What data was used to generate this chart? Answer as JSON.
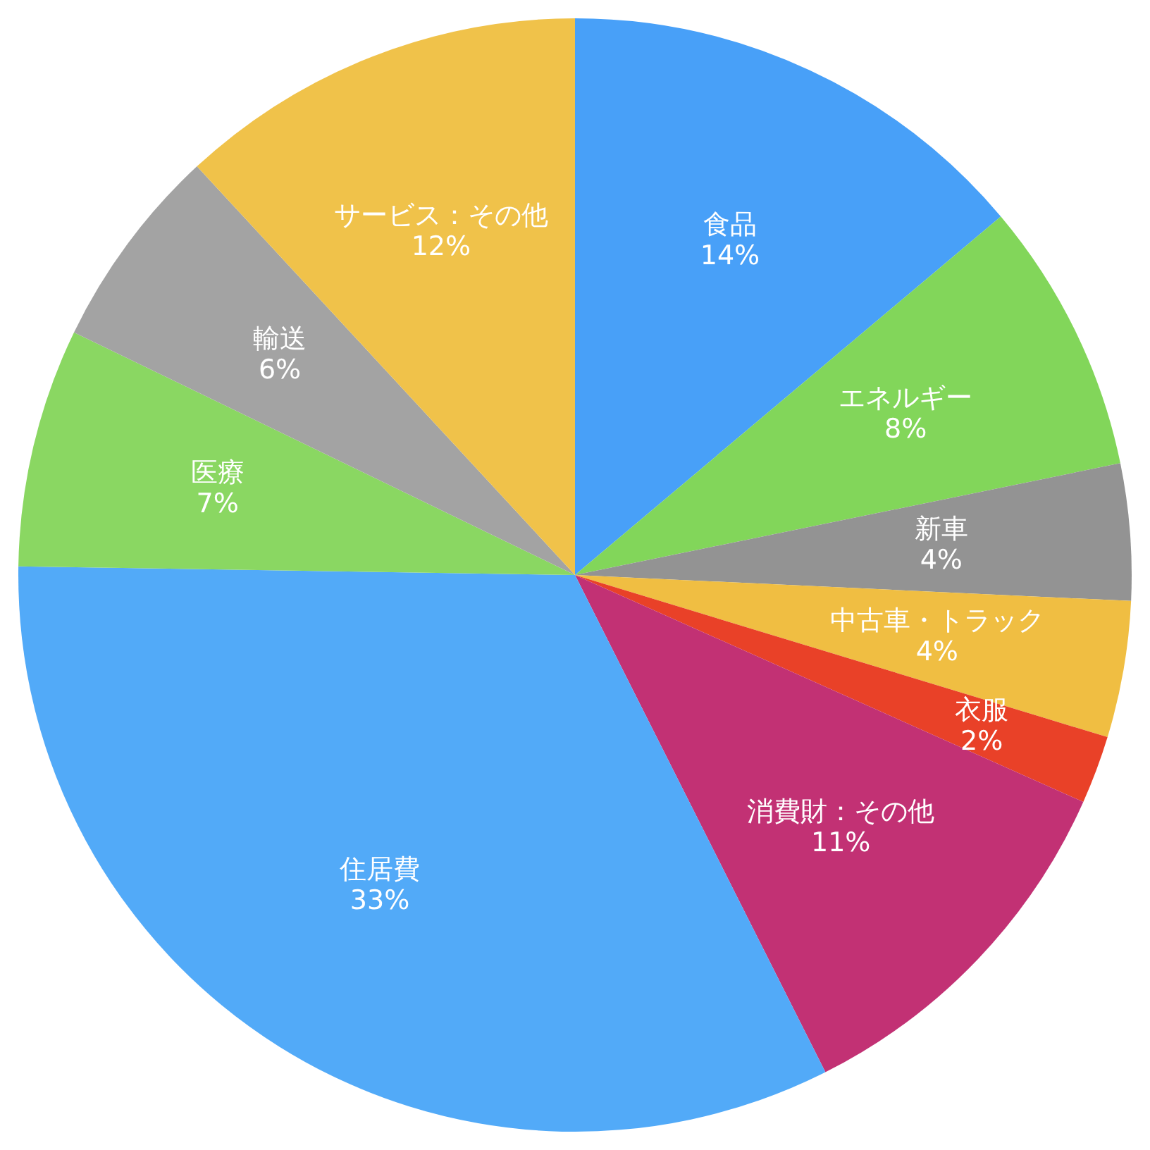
{
  "chart_data": {
    "type": "pie",
    "categories": [
      "食品",
      "エネルギー",
      "新車",
      "中古車・トラック",
      "衣服",
      "消費財：その他",
      "住居費",
      "医療",
      "輸送",
      "サービス：その他"
    ],
    "values": [
      14,
      8,
      4,
      4,
      2,
      11,
      33,
      7,
      6,
      12
    ],
    "value_labels": [
      "14%",
      "8%",
      "4%",
      "4%",
      "2%",
      "11%",
      "33%",
      "7%",
      "6%",
      "12%"
    ],
    "colors": [
      "#48a0f8",
      "#82d65a",
      "#939393",
      "#f0be42",
      "#e94128",
      "#c23174",
      "#52aaf8",
      "#8ad762",
      "#a3a3a3",
      "#f0c24a"
    ],
    "legend": false
  }
}
